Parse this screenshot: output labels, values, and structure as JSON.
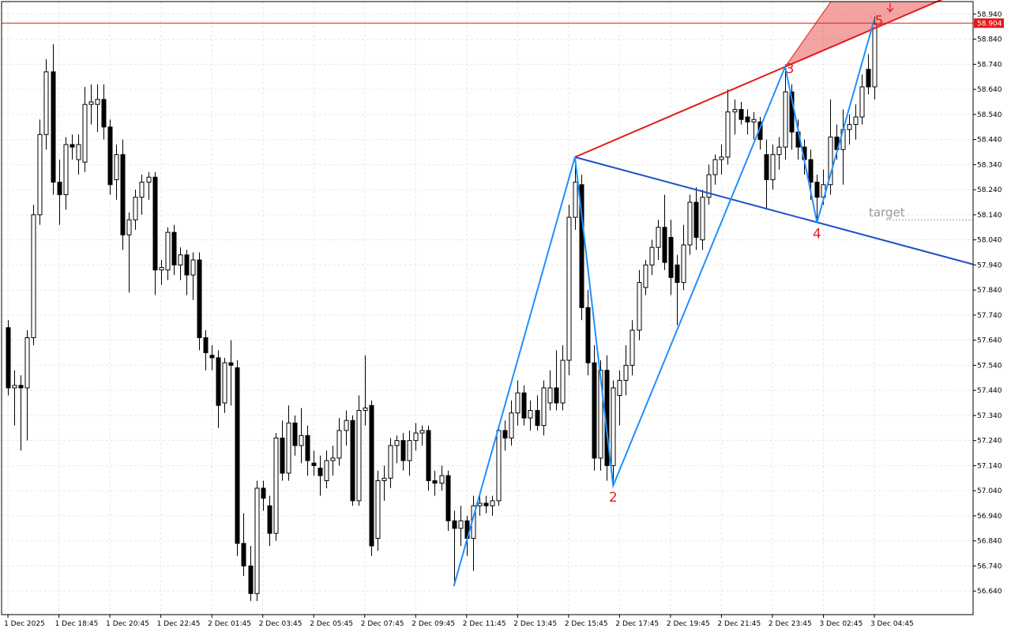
{
  "chart_data": {
    "type": "candlestick",
    "up_color": "#ffffff",
    "down_color": "#000000",
    "grid": true,
    "xlim": [
      -1,
      151.5
    ],
    "ylim": [
      56.546,
      58.99
    ],
    "yticks": [
      {
        "value": 58.94,
        "label": "58.940"
      },
      {
        "value": 58.84,
        "label": "58.840"
      },
      {
        "value": 58.74,
        "label": "58.740"
      },
      {
        "value": 58.64,
        "label": "58.640"
      },
      {
        "value": 58.54,
        "label": "58.540"
      },
      {
        "value": 58.44,
        "label": "58.440"
      },
      {
        "value": 58.34,
        "label": "58.340"
      },
      {
        "value": 58.24,
        "label": "58.240"
      },
      {
        "value": 58.14,
        "label": "58.140"
      },
      {
        "value": 58.04,
        "label": "58.040"
      },
      {
        "value": 57.94,
        "label": "57.940"
      },
      {
        "value": 57.84,
        "label": "57.840"
      },
      {
        "value": 57.74,
        "label": "57.740"
      },
      {
        "value": 57.64,
        "label": "57.640"
      },
      {
        "value": 57.54,
        "label": "57.540"
      },
      {
        "value": 57.44,
        "label": "57.440"
      },
      {
        "value": 57.34,
        "label": "57.340"
      },
      {
        "value": 57.24,
        "label": "57.240"
      },
      {
        "value": 57.14,
        "label": "57.140"
      },
      {
        "value": 57.04,
        "label": "57.040"
      },
      {
        "value": 56.94,
        "label": "56.940"
      },
      {
        "value": 56.84,
        "label": "56.840"
      },
      {
        "value": 56.74,
        "label": "56.740"
      },
      {
        "value": 56.64,
        "label": "56.640"
      }
    ],
    "xticks": [
      {
        "value": 0,
        "label": "1 Dec 2025"
      },
      {
        "value": 8,
        "label": "1 Dec 18:45"
      },
      {
        "value": 16,
        "label": "1 Dec 20:45"
      },
      {
        "value": 24,
        "label": "1 Dec 22:45"
      },
      {
        "value": 32,
        "label": "2 Dec 01:45"
      },
      {
        "value": 40,
        "label": "2 Dec 03:45"
      },
      {
        "value": 48,
        "label": "2 Dec 05:45"
      },
      {
        "value": 56,
        "label": "2 Dec 07:45"
      },
      {
        "value": 64,
        "label": "2 Dec 09:45"
      },
      {
        "value": 72,
        "label": "2 Dec 11:45"
      },
      {
        "value": 80,
        "label": "2 Dec 13:45"
      },
      {
        "value": 88,
        "label": "2 Dec 15:45"
      },
      {
        "value": 96,
        "label": "2 Dec 17:45"
      },
      {
        "value": 104,
        "label": "2 Dec 19:45"
      },
      {
        "value": 112,
        "label": "2 Dec 21:45"
      },
      {
        "value": 120,
        "label": "2 Dec 23:45"
      },
      {
        "value": 128,
        "label": "3 Dec 02:45"
      },
      {
        "value": 136,
        "label": "3 Dec 04:45"
      }
    ],
    "candles": [
      [
        57.69,
        57.72,
        57.42,
        57.45
      ],
      [
        57.45,
        57.52,
        57.3,
        57.46
      ],
      [
        57.46,
        57.5,
        57.2,
        57.45
      ],
      [
        57.45,
        57.68,
        57.24,
        57.65
      ],
      [
        57.65,
        58.18,
        57.62,
        58.14
      ],
      [
        58.14,
        58.52,
        58.1,
        58.46
      ],
      [
        58.46,
        58.76,
        58.4,
        58.71
      ],
      [
        58.71,
        58.82,
        58.22,
        58.27
      ],
      [
        58.27,
        58.36,
        58.1,
        58.22
      ],
      [
        58.22,
        58.45,
        58.16,
        58.42
      ],
      [
        58.42,
        58.46,
        58.36,
        58.41
      ],
      [
        58.36,
        58.46,
        58.3,
        58.42
      ],
      [
        58.35,
        58.65,
        58.31,
        58.58
      ],
      [
        58.58,
        58.66,
        58.5,
        58.59
      ],
      [
        58.58,
        58.66,
        58.47,
        58.6
      ],
      [
        58.6,
        58.66,
        58.44,
        58.49
      ],
      [
        58.49,
        58.52,
        58.22,
        58.26
      ],
      [
        58.28,
        58.42,
        58.2,
        58.38
      ],
      [
        58.38,
        58.44,
        58.0,
        58.06
      ],
      [
        58.06,
        58.15,
        57.83,
        58.12
      ],
      [
        58.12,
        58.24,
        58.08,
        58.21
      ],
      [
        58.21,
        58.3,
        58.14,
        58.27
      ],
      [
        58.27,
        58.31,
        58.2,
        58.29
      ],
      [
        58.29,
        58.31,
        57.82,
        57.92
      ],
      [
        57.92,
        57.96,
        57.86,
        57.93
      ],
      [
        57.92,
        58.09,
        57.88,
        58.07
      ],
      [
        58.07,
        58.1,
        57.9,
        57.94
      ],
      [
        57.94,
        58.01,
        57.88,
        57.98
      ],
      [
        57.98,
        58.0,
        57.82,
        57.9
      ],
      [
        57.9,
        57.99,
        57.8,
        57.96
      ],
      [
        57.96,
        57.99,
        57.6,
        57.65
      ],
      [
        57.65,
        57.68,
        57.52,
        57.59
      ],
      [
        57.58,
        57.62,
        57.52,
        57.57
      ],
      [
        57.57,
        57.6,
        57.29,
        57.38
      ],
      [
        57.39,
        57.57,
        57.35,
        57.55
      ],
      [
        57.55,
        57.64,
        57.38,
        57.54
      ],
      [
        57.53,
        57.56,
        56.78,
        56.83
      ],
      [
        56.83,
        56.95,
        56.7,
        56.74
      ],
      [
        56.74,
        56.82,
        56.6,
        56.63
      ],
      [
        56.63,
        57.08,
        56.6,
        57.05
      ],
      [
        57.05,
        57.08,
        56.96,
        57.01
      ],
      [
        56.98,
        57.02,
        56.82,
        56.87
      ],
      [
        56.87,
        57.27,
        56.84,
        57.25
      ],
      [
        57.25,
        57.32,
        57.08,
        57.11
      ],
      [
        57.11,
        57.38,
        57.08,
        57.31
      ],
      [
        57.31,
        57.34,
        57.18,
        57.22
      ],
      [
        57.22,
        57.37,
        57.15,
        57.26
      ],
      [
        57.26,
        57.3,
        57.1,
        57.16
      ],
      [
        57.15,
        57.2,
        57.1,
        57.14
      ],
      [
        57.13,
        57.18,
        57.02,
        57.1
      ],
      [
        57.08,
        57.2,
        57.05,
        57.16
      ],
      [
        57.16,
        57.22,
        57.1,
        57.17
      ],
      [
        57.17,
        57.33,
        57.14,
        57.28
      ],
      [
        57.28,
        57.36,
        57.22,
        57.32
      ],
      [
        57.32,
        57.34,
        56.98,
        57.0
      ],
      [
        57.0,
        57.42,
        56.98,
        57.36
      ],
      [
        57.36,
        57.58,
        57.3,
        57.37
      ],
      [
        57.38,
        57.4,
        56.78,
        56.82
      ],
      [
        56.85,
        57.12,
        56.8,
        57.08
      ],
      [
        57.08,
        57.14,
        57.0,
        57.09
      ],
      [
        57.09,
        57.25,
        57.05,
        57.22
      ],
      [
        57.22,
        57.26,
        57.15,
        57.24
      ],
      [
        57.24,
        57.27,
        57.12,
        57.16
      ],
      [
        57.16,
        57.28,
        57.1,
        57.24
      ],
      [
        57.24,
        57.31,
        57.2,
        57.27
      ],
      [
        57.27,
        57.3,
        57.22,
        57.28
      ],
      [
        57.28,
        57.3,
        57.04,
        57.08
      ],
      [
        57.08,
        57.12,
        57.02,
        57.07
      ],
      [
        57.07,
        57.14,
        57.04,
        57.1
      ],
      [
        57.1,
        57.12,
        56.88,
        56.92
      ],
      [
        56.92,
        56.96,
        56.66,
        56.89
      ],
      [
        56.89,
        56.98,
        56.82,
        56.92
      ],
      [
        56.92,
        56.94,
        56.78,
        56.85
      ],
      [
        56.85,
        57.02,
        56.72,
        56.98
      ],
      [
        56.98,
        57.02,
        56.94,
        56.99
      ],
      [
        56.99,
        57.02,
        56.95,
        56.98
      ],
      [
        56.98,
        57.02,
        56.94,
        57.0
      ],
      [
        57.0,
        57.3,
        56.98,
        57.28
      ],
      [
        57.28,
        57.32,
        57.2,
        57.25
      ],
      [
        57.25,
        57.4,
        57.22,
        57.35
      ],
      [
        57.35,
        57.48,
        57.3,
        57.43
      ],
      [
        57.43,
        57.46,
        57.3,
        57.33
      ],
      [
        57.33,
        57.4,
        57.28,
        57.36
      ],
      [
        57.36,
        57.42,
        57.28,
        57.3
      ],
      [
        57.3,
        57.48,
        57.26,
        57.45
      ],
      [
        57.39,
        57.52,
        57.36,
        57.45
      ],
      [
        57.45,
        57.6,
        57.36,
        57.39
      ],
      [
        57.39,
        57.62,
        57.36,
        57.56
      ],
      [
        57.56,
        58.18,
        57.5,
        58.13
      ],
      [
        58.13,
        58.37,
        58.08,
        58.27
      ],
      [
        58.26,
        58.3,
        57.72,
        57.77
      ],
      [
        57.77,
        57.84,
        57.5,
        57.55
      ],
      [
        57.55,
        57.62,
        57.12,
        57.17
      ],
      [
        57.17,
        57.56,
        57.12,
        57.52
      ],
      [
        57.52,
        57.58,
        57.08,
        57.14
      ],
      [
        57.14,
        57.48,
        57.06,
        57.45
      ],
      [
        57.42,
        57.52,
        57.3,
        57.48
      ],
      [
        57.48,
        57.62,
        57.42,
        57.54
      ],
      [
        57.54,
        57.72,
        57.5,
        57.68
      ],
      [
        57.68,
        57.92,
        57.64,
        57.87
      ],
      [
        57.85,
        57.96,
        57.82,
        57.94
      ],
      [
        57.94,
        58.04,
        57.9,
        58.01
      ],
      [
        58.01,
        58.12,
        57.96,
        58.09
      ],
      [
        58.09,
        58.22,
        57.92,
        57.95
      ],
      [
        58.05,
        58.12,
        57.82,
        57.89
      ],
      [
        57.94,
        57.98,
        57.7,
        57.87
      ],
      [
        57.87,
        58.1,
        57.84,
        58.02
      ],
      [
        58.02,
        58.22,
        57.98,
        58.19
      ],
      [
        58.19,
        58.25,
        58.0,
        58.05
      ],
      [
        58.04,
        58.24,
        58.0,
        58.21
      ],
      [
        58.21,
        58.34,
        58.18,
        58.3
      ],
      [
        58.3,
        58.38,
        58.26,
        58.36
      ],
      [
        58.36,
        58.42,
        58.3,
        58.37
      ],
      [
        58.37,
        58.64,
        58.34,
        58.55
      ],
      [
        58.55,
        58.6,
        58.46,
        58.56
      ],
      [
        58.56,
        58.59,
        58.5,
        58.52
      ],
      [
        58.53,
        58.56,
        58.46,
        58.51
      ],
      [
        58.51,
        58.55,
        58.44,
        58.52
      ],
      [
        58.51,
        58.53,
        58.4,
        58.44
      ],
      [
        58.38,
        58.44,
        58.16,
        58.28
      ],
      [
        58.28,
        58.42,
        58.24,
        58.38
      ],
      [
        58.38,
        58.45,
        58.32,
        58.41
      ],
      [
        58.41,
        58.74,
        58.36,
        58.63
      ],
      [
        58.63,
        58.66,
        58.4,
        58.47
      ],
      [
        58.47,
        58.52,
        58.36,
        58.41
      ],
      [
        58.41,
        58.44,
        58.3,
        58.36
      ],
      [
        58.36,
        58.4,
        58.2,
        58.27
      ],
      [
        58.27,
        58.3,
        58.11,
        58.21
      ],
      [
        58.21,
        58.32,
        58.18,
        58.26
      ],
      [
        58.26,
        58.6,
        58.22,
        58.45
      ],
      [
        58.45,
        58.5,
        58.36,
        58.4
      ],
      [
        58.4,
        58.56,
        58.26,
        58.48
      ],
      [
        58.48,
        58.54,
        58.42,
        58.5
      ],
      [
        58.5,
        58.58,
        58.44,
        58.53
      ],
      [
        58.53,
        58.7,
        58.5,
        58.65
      ],
      [
        58.72,
        58.78,
        58.62,
        58.65
      ],
      [
        58.65,
        58.93,
        58.6,
        58.9
      ]
    ],
    "wave": {
      "x": [
        70,
        89,
        95,
        122,
        127,
        136
      ],
      "prices": [
        56.66,
        58.37,
        57.06,
        58.73,
        58.11,
        58.92
      ],
      "labels": [
        null,
        null,
        "2",
        "3",
        "4",
        "5"
      ],
      "color": "#1e90ff",
      "line_13_color": "#e41a1a",
      "line_14_color": "#1e50c8"
    },
    "target": {
      "label": "target",
      "price": 58.12
    },
    "current_price": 58.904,
    "current_price_color": "#e41a1a"
  }
}
